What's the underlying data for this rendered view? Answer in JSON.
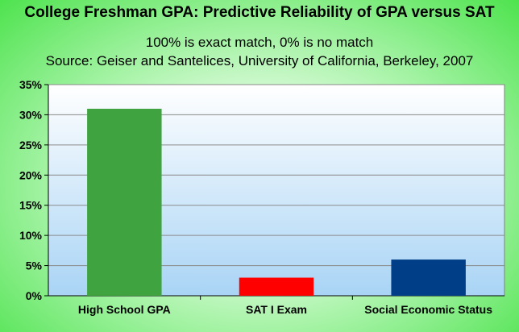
{
  "chart_data": {
    "type": "bar",
    "title": "College Freshman GPA: Predictive Reliability of GPA versus SAT",
    "subtitle": "100% is exact match, 0% is no match",
    "source": "Source: Geiser and Santelices, University of California, Berkeley, 2007",
    "categories": [
      "High School GPA",
      "SAT I Exam",
      "Social Economic Status"
    ],
    "values": [
      31,
      3,
      6
    ],
    "bar_colors": [
      "#3fa33f",
      "#ff0000",
      "#003f87"
    ],
    "ylim": [
      0,
      35
    ],
    "yticks": [
      0,
      5,
      10,
      15,
      20,
      25,
      30,
      35
    ],
    "ytick_labels": [
      "0%",
      "5%",
      "10%",
      "15%",
      "20%",
      "25%",
      "30%",
      "35%"
    ],
    "grid": true,
    "legend": false,
    "plot_background": [
      "#ffffff",
      "#a9d4f5"
    ]
  }
}
